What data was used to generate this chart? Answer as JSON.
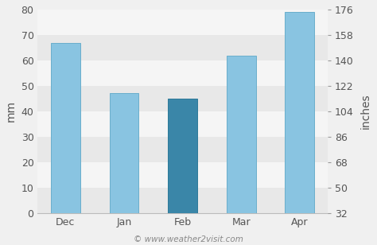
{
  "categories": [
    "Dec",
    "Jan",
    "Feb",
    "Mar",
    "Apr"
  ],
  "values": [
    67,
    47,
    45,
    62,
    79
  ],
  "bar_colors": [
    "#89C4E1",
    "#89C4E1",
    "#3A86A8",
    "#89C4E1",
    "#89C4E1"
  ],
  "bar_edgecolors": [
    "#6aaecc",
    "#6aaecc",
    "#2d7a99",
    "#6aaecc",
    "#6aaecc"
  ],
  "ylabel_left": "mm",
  "ylabel_right": "inches",
  "ylim_left": [
    0,
    80
  ],
  "yticks_left": [
    0,
    10,
    20,
    30,
    40,
    50,
    60,
    70,
    80
  ],
  "yticks_right": [
    32,
    50,
    68,
    86,
    104,
    122,
    140,
    158,
    176
  ],
  "background_color": "#f0f0f0",
  "plot_bg_color": "#f5f5f5",
  "band_colors": [
    "#e8e8e8",
    "#f5f5f5"
  ],
  "grid_color": "#d8d8d8",
  "footer_text": "© www.weather2visit.com",
  "tick_fontsize": 9,
  "label_fontsize": 10,
  "bar_width": 0.5
}
